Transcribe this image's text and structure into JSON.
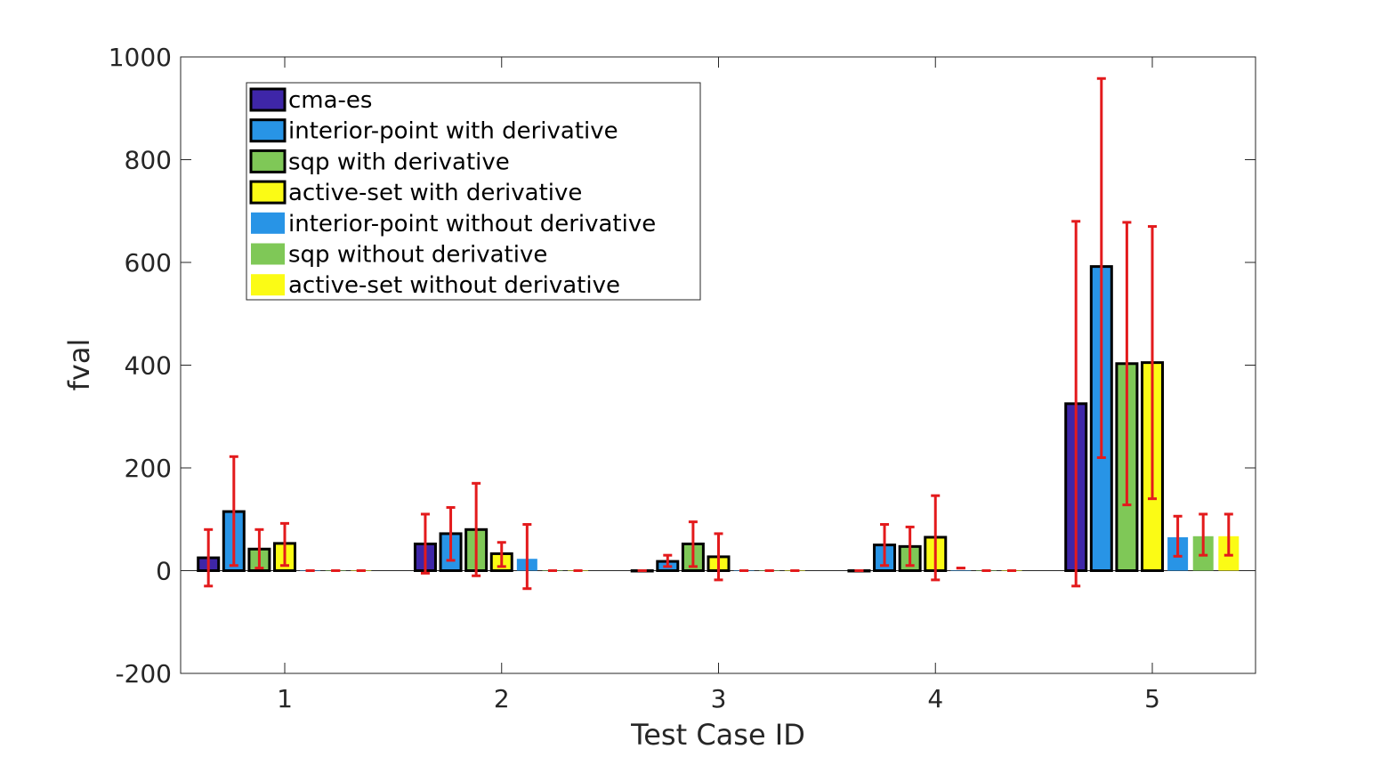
{
  "chart_data": {
    "type": "bar",
    "xlabel": "Test Case ID",
    "ylabel": "fval",
    "categories": [
      "1",
      "2",
      "3",
      "4",
      "5"
    ],
    "ylim": [
      -200,
      1000
    ],
    "yticks": [
      -200,
      0,
      200,
      400,
      600,
      800,
      1000
    ],
    "legend_position": "top-left",
    "grid": false,
    "series": [
      {
        "name": "cma-es",
        "color": "#3e26a8",
        "outlined": true,
        "values": [
          25,
          52,
          0,
          0,
          325
        ],
        "err_low": [
          -30,
          -5,
          0,
          0,
          -30
        ],
        "err_high": [
          80,
          110,
          0,
          0,
          680
        ]
      },
      {
        "name": "interior-point with derivative",
        "color": "#2894e6",
        "outlined": true,
        "values": [
          115,
          72,
          18,
          50,
          592
        ],
        "err_low": [
          10,
          20,
          8,
          10,
          220
        ],
        "err_high": [
          222,
          123,
          30,
          90,
          958
        ]
      },
      {
        "name": "sqp with derivative",
        "color": "#7fc857",
        "outlined": true,
        "values": [
          42,
          80,
          52,
          47,
          403
        ],
        "err_low": [
          5,
          -10,
          8,
          10,
          128
        ],
        "err_high": [
          80,
          170,
          95,
          85,
          678
        ]
      },
      {
        "name": "active-set with derivative",
        "color": "#fbfb15",
        "outlined": true,
        "values": [
          53,
          33,
          27,
          65,
          405
        ],
        "err_low": [
          10,
          8,
          -18,
          -18,
          140
        ],
        "err_high": [
          92,
          55,
          72,
          146,
          670
        ]
      },
      {
        "name": "interior-point without derivative",
        "color": "#2894e6",
        "outlined": false,
        "values": [
          0,
          23,
          0,
          0,
          65
        ],
        "err_low": [
          0,
          -35,
          0,
          5,
          28
        ],
        "err_high": [
          0,
          90,
          0,
          5,
          106
        ]
      },
      {
        "name": "sqp without derivative",
        "color": "#7fc857",
        "outlined": false,
        "values": [
          0,
          0,
          0,
          0,
          67
        ],
        "err_low": [
          0,
          0,
          0,
          0,
          30
        ],
        "err_high": [
          0,
          0,
          0,
          0,
          110
        ]
      },
      {
        "name": "active-set without derivative",
        "color": "#fbfb15",
        "outlined": false,
        "values": [
          0,
          0,
          0,
          0,
          67
        ],
        "err_low": [
          0,
          0,
          0,
          0,
          30
        ],
        "err_high": [
          0,
          0,
          0,
          0,
          110
        ]
      }
    ],
    "error_bar_color": "#e31a1c"
  }
}
